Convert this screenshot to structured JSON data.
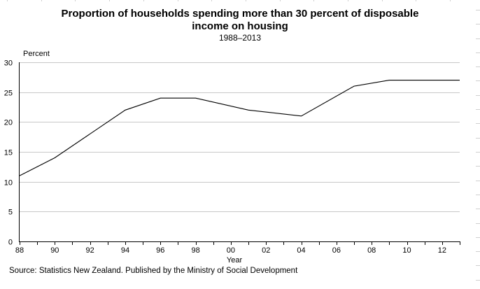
{
  "chart_data": {
    "type": "line",
    "title": "Proportion of households spending more than 30 percent of disposable income on housing",
    "title_lines": [
      "Proportion of households spending more than 30 percent of disposable",
      "income on housing"
    ],
    "subtitle": "1988–2013",
    "xlabel": "Year",
    "ylabel": "Percent",
    "source": "Source: Statistics New Zealand. Published by the Ministry of Social Development",
    "xlim": [
      1988,
      2013
    ],
    "ylim": [
      0,
      30
    ],
    "grid": true,
    "x_ticks": [
      {
        "year": 1988,
        "label": "88"
      },
      {
        "year": 1990,
        "label": "90"
      },
      {
        "year": 1992,
        "label": "92"
      },
      {
        "year": 1994,
        "label": "94"
      },
      {
        "year": 1996,
        "label": "96"
      },
      {
        "year": 1998,
        "label": "98"
      },
      {
        "year": 2000,
        "label": "00"
      },
      {
        "year": 2002,
        "label": "02"
      },
      {
        "year": 2004,
        "label": "04"
      },
      {
        "year": 2006,
        "label": "06"
      },
      {
        "year": 2008,
        "label": "08"
      },
      {
        "year": 2010,
        "label": "10"
      },
      {
        "year": 2012,
        "label": "12"
      }
    ],
    "y_ticks": [
      {
        "value": 0,
        "label": "0"
      },
      {
        "value": 5,
        "label": "5"
      },
      {
        "value": 10,
        "label": "10"
      },
      {
        "value": 15,
        "label": "15"
      },
      {
        "value": 20,
        "label": "20"
      },
      {
        "value": 25,
        "label": "25"
      },
      {
        "value": 30,
        "label": "30"
      }
    ],
    "series": [
      {
        "name": "Households spending >30% of disposable income on housing",
        "color": "#000000",
        "x": [
          1988,
          1990,
          1994,
          1996,
          1998,
          2001,
          2004,
          2007,
          2009,
          2013
        ],
        "values": [
          11,
          14,
          22,
          24,
          24,
          22,
          21,
          26,
          27,
          27
        ]
      }
    ],
    "legend": "none",
    "colors": {
      "gridline": "#c8c8c8",
      "axis": "#000000",
      "edge_marks": "#d0d0d0"
    }
  }
}
